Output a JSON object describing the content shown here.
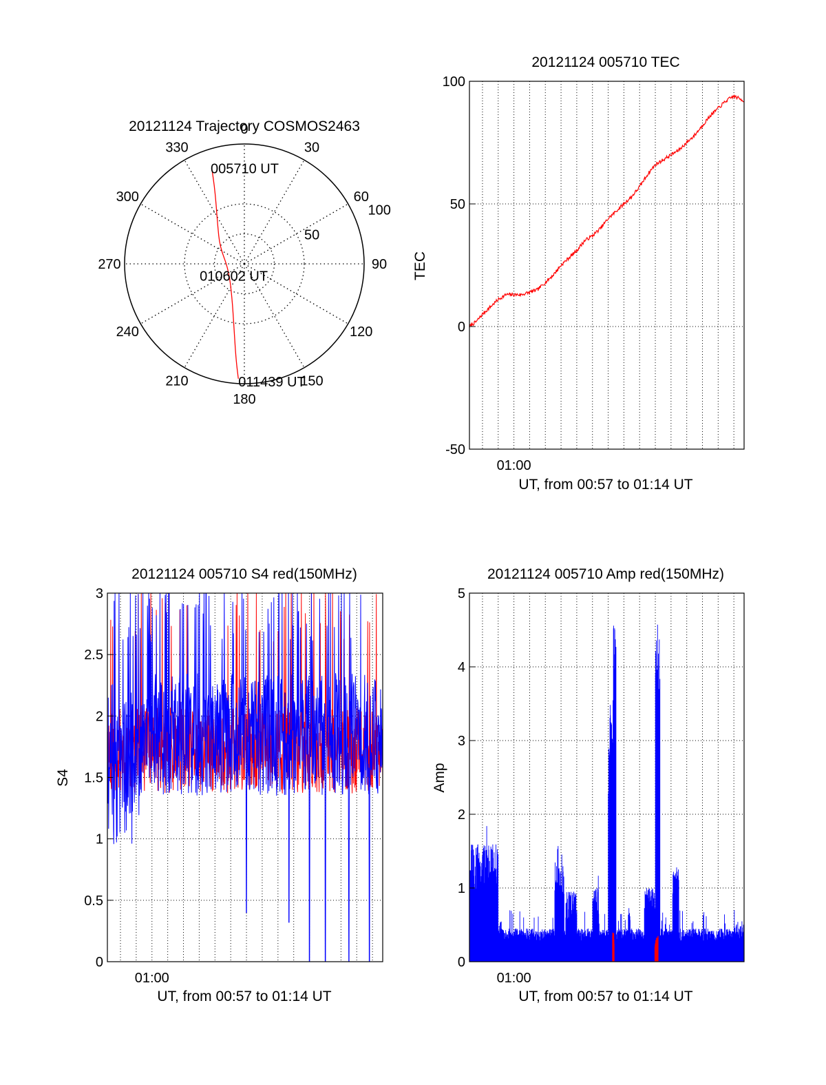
{
  "chart_data": [
    {
      "type": "polar",
      "title": "20121124 Trajectory COSMOS2463",
      "angle_ticks": [
        "0",
        "30",
        "60",
        "90",
        "120",
        "150",
        "180",
        "210",
        "240",
        "270",
        "300",
        "330"
      ],
      "angle_values": [
        0,
        30,
        60,
        90,
        120,
        150,
        180,
        210,
        240,
        270,
        300,
        330
      ],
      "radius_ticks": [
        "50",
        "100"
      ],
      "radius_values": [
        50,
        100
      ],
      "radial_meaning": "zenith-angle-like; center = 0, rim = 100",
      "trajectory": {
        "color": "#ff0000",
        "points": [
          {
            "az": 341,
            "r": 83
          },
          {
            "az": 339,
            "r": 70
          },
          {
            "az": 335,
            "r": 56
          },
          {
            "az": 326,
            "r": 40
          },
          {
            "az": 305,
            "r": 25
          },
          {
            "az": 250,
            "r": 14
          },
          {
            "az": 200,
            "r": 30
          },
          {
            "az": 189,
            "r": 55
          },
          {
            "az": 185,
            "r": 80
          },
          {
            "az": 183,
            "r": 96
          }
        ],
        "labels": [
          {
            "text": "005710 UT",
            "az": 341,
            "r": 83
          },
          {
            "text": "010602 UT",
            "az": 250,
            "r": 14
          },
          {
            "text": "011439 UT",
            "az": 183,
            "r": 96
          }
        ]
      }
    },
    {
      "type": "line",
      "title": "20121124 005710 TEC",
      "xlabel": "UT, from 00:57 to 01:14 UT",
      "ylabel": "TEC",
      "xlim_min": [
        57.17,
        74.65
      ],
      "ylim": [
        -50,
        100
      ],
      "yticks": [
        -50,
        0,
        50,
        100
      ],
      "xtick_labels": [
        {
          "min": 60,
          "label": "01:00"
        }
      ],
      "xgrid_min": [
        58,
        59,
        60,
        61,
        62,
        63,
        64,
        65,
        66,
        67,
        68,
        69,
        70,
        71,
        72,
        73,
        74
      ],
      "series": [
        {
          "color": "#ff0000",
          "x_min": [
            57.17,
            57.6,
            58.0,
            58.5,
            59.0,
            59.5,
            60.0,
            60.5,
            61.0,
            61.5,
            62.0,
            62.5,
            63.0,
            63.5,
            64.0,
            64.5,
            65.0,
            65.5,
            66.0,
            66.5,
            67.0,
            67.5,
            68.0,
            68.5,
            69.0,
            69.5,
            70.0,
            70.5,
            71.0,
            71.5,
            72.0,
            72.5,
            73.0,
            73.5,
            74.0,
            74.65
          ],
          "y": [
            0,
            2,
            5,
            8,
            11,
            13,
            13,
            13,
            14,
            15,
            18,
            21,
            25,
            28,
            31,
            35,
            37,
            40,
            44,
            47,
            50,
            53,
            57,
            62,
            66,
            68,
            70,
            72,
            75,
            78,
            82,
            86,
            89,
            92,
            94,
            92
          ]
        }
      ]
    },
    {
      "type": "line",
      "title": "20121124 005710 S4 red(150MHz)",
      "xlabel": "UT, from 00:57 to 01:14 UT",
      "ylabel": "S4",
      "xlim_min": [
        57.17,
        74.65
      ],
      "ylim": [
        0,
        3
      ],
      "yticks": [
        0,
        0.5,
        1,
        1.5,
        2,
        2.5,
        3
      ],
      "ytick_labels": [
        "0",
        "0.5",
        "1",
        "1.5",
        "2",
        "2.5",
        "3"
      ],
      "xtick_labels": [
        {
          "min": 60,
          "label": "01:00"
        }
      ],
      "xgrid_min": [
        58,
        59,
        60,
        61,
        62,
        63,
        64,
        65,
        66,
        67,
        68,
        69,
        70,
        71,
        72,
        73,
        74
      ],
      "series": [
        {
          "color": "#ff0000",
          "profile": {
            "base": 1.72,
            "spread": 0.35,
            "spike_prob": 0.04,
            "seed": 11
          }
        },
        {
          "color": "#0000ff",
          "profile": {
            "base": 1.85,
            "spread": 0.5,
            "spike_prob": 0.1,
            "seed": 23,
            "dips": [
              {
                "x_min": 66.0,
                "y": 0.4
              },
              {
                "x_min": 68.7,
                "y": 0.32
              },
              {
                "x_min": 70.0,
                "y": 0
              },
              {
                "x_min": 71.0,
                "y": 0
              },
              {
                "x_min": 72.5,
                "y": 0
              },
              {
                "x_min": 73.8,
                "y": 0
              }
            ]
          }
        }
      ]
    },
    {
      "type": "area",
      "title": "20121124 005710 Amp red(150MHz)",
      "xlabel": "UT, from 00:57 to 01:14 UT",
      "ylabel": "Amp",
      "xlim_min": [
        57.17,
        74.65
      ],
      "ylim": [
        0,
        5
      ],
      "yticks": [
        0,
        1,
        2,
        3,
        4,
        5
      ],
      "xtick_labels": [
        {
          "min": 60,
          "label": "01:00"
        }
      ],
      "xgrid_min": [
        58,
        59,
        60,
        61,
        62,
        63,
        64,
        65,
        66,
        67,
        68,
        69,
        70,
        71,
        72,
        73,
        74
      ],
      "series": [
        {
          "color": "#0000ff",
          "profile": {
            "base": 0.45,
            "seed": 5,
            "bumps": [
              {
                "x0": 57.2,
                "x1": 59.0,
                "y": 1.6
              },
              {
                "x0": 62.6,
                "x1": 63.2,
                "y": 1.35
              },
              {
                "x0": 63.3,
                "x1": 64.0,
                "y": 0.95
              },
              {
                "x0": 65.0,
                "x1": 65.4,
                "y": 1.0
              },
              {
                "x0": 66.0,
                "x1": 66.3,
                "y": 3.7
              },
              {
                "x0": 66.3,
                "x1": 66.5,
                "y": 4.55
              },
              {
                "x0": 67.3,
                "x1": 67.4,
                "y": 0.75
              },
              {
                "x0": 68.3,
                "x1": 69.0,
                "y": 1.0
              },
              {
                "x0": 69.0,
                "x1": 69.3,
                "y": 4.6
              },
              {
                "x0": 70.1,
                "x1": 70.5,
                "y": 1.3
              }
            ]
          }
        },
        {
          "color": "#ff0000",
          "profile": {
            "base": 0.0,
            "seed": 9,
            "bumps": [
              {
                "x0": 66.28,
                "x1": 66.38,
                "y": 0.4
              },
              {
                "x0": 68.98,
                "x1": 69.18,
                "y": 0.35
              }
            ]
          }
        }
      ]
    }
  ]
}
